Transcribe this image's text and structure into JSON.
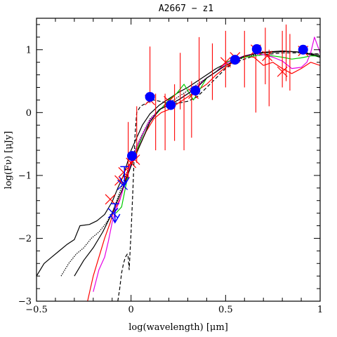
{
  "chart_data": {
    "type": "line",
    "title": "A2667 − z1",
    "xlabel": "log(wavelength) [μm]",
    "ylabel": "log(Fν) [μJy]",
    "xlim": [
      -0.5,
      1.0
    ],
    "ylim": [
      -3.0,
      1.5
    ],
    "x_ticks": [
      -0.5,
      0,
      0.5,
      1
    ],
    "x_tick_labels": [
      "−0.5",
      "0",
      "0.5",
      "1"
    ],
    "y_ticks": [
      -3,
      -2,
      -1,
      0,
      1
    ],
    "y_tick_labels": [
      "−3",
      "−2",
      "−1",
      "0",
      "1"
    ],
    "grid": false,
    "colors": {
      "black": "#000000",
      "red": "#ff0000",
      "green": "#00cc00",
      "magenta": "#e600e6",
      "blue": "#0000ff"
    },
    "series": [
      {
        "color": "black",
        "style": "solid",
        "x": [
          -0.5,
          -0.46,
          -0.42,
          -0.38,
          -0.34,
          -0.3,
          -0.27,
          -0.22,
          -0.18,
          -0.14,
          -0.1,
          -0.07,
          -0.04,
          -0.02,
          0.0,
          0.03,
          0.06,
          0.1,
          0.15,
          0.2,
          0.25,
          0.3,
          0.35,
          0.4,
          0.45,
          0.5,
          0.55,
          0.6,
          0.65,
          0.7,
          0.75,
          0.8,
          0.85,
          0.9,
          0.95,
          1.0
        ],
        "y": [
          -2.6,
          -2.4,
          -2.3,
          -2.2,
          -2.1,
          -2.02,
          -1.8,
          -1.78,
          -1.72,
          -1.62,
          -1.42,
          -1.2,
          -1.0,
          -0.8,
          -0.6,
          -0.4,
          -0.2,
          -0.02,
          0.12,
          0.22,
          0.32,
          0.4,
          0.5,
          0.6,
          0.7,
          0.78,
          0.85,
          0.9,
          0.93,
          0.95,
          0.96,
          0.97,
          0.97,
          0.96,
          0.92,
          0.88
        ]
      },
      {
        "color": "black",
        "style": "dotted",
        "x": [
          -0.37,
          -0.33,
          -0.29,
          -0.25,
          -0.21,
          -0.17,
          -0.13,
          -0.1,
          -0.07,
          -0.04,
          -0.01,
          0.02,
          0.05,
          0.1,
          0.15,
          0.2,
          0.3,
          0.4,
          0.5,
          0.6,
          0.7,
          0.8,
          0.9,
          1.0
        ],
        "y": [
          -2.6,
          -2.4,
          -2.25,
          -2.15,
          -2.0,
          -1.9,
          -1.75,
          -1.6,
          -1.35,
          -1.1,
          -0.85,
          -0.6,
          -0.4,
          -0.1,
          0.05,
          0.15,
          0.35,
          0.55,
          0.75,
          0.88,
          0.95,
          0.98,
          0.96,
          0.92
        ]
      },
      {
        "color": "black",
        "style": "dashed",
        "x": [
          -0.07,
          -0.06,
          -0.05,
          -0.04,
          -0.03,
          -0.02,
          -0.015,
          -0.01,
          -0.005,
          0.0,
          0.01,
          0.02,
          0.03,
          0.05,
          0.08,
          0.1,
          0.12,
          0.15,
          0.2,
          0.25,
          0.3,
          0.35,
          0.4,
          0.45,
          0.5,
          0.55,
          0.6,
          0.65,
          0.7,
          0.8,
          0.9,
          1.0
        ],
        "y": [
          -3.0,
          -2.8,
          -2.55,
          -2.4,
          -2.3,
          -2.25,
          -2.3,
          -2.5,
          -2.2,
          -1.9,
          -1.2,
          -0.4,
          0.0,
          0.1,
          0.15,
          0.18,
          0.2,
          0.18,
          0.15,
          0.15,
          0.18,
          0.25,
          0.4,
          0.55,
          0.7,
          0.8,
          0.85,
          0.9,
          0.92,
          0.95,
          0.95,
          0.93
        ]
      },
      {
        "color": "red",
        "style": "solid",
        "x": [
          -0.23,
          -0.2,
          -0.17,
          -0.14,
          -0.11,
          -0.09,
          -0.07,
          -0.05,
          -0.03,
          -0.01,
          0.01,
          0.03,
          0.05,
          0.08,
          0.12,
          0.16,
          0.2,
          0.25,
          0.3,
          0.35,
          0.4,
          0.45,
          0.5,
          0.55,
          0.6,
          0.65,
          0.7,
          0.75,
          0.8,
          0.85,
          0.9,
          0.95,
          1.0
        ],
        "y": [
          -3.0,
          -2.6,
          -2.3,
          -2.0,
          -1.75,
          -1.55,
          -1.45,
          -1.3,
          -1.05,
          -0.85,
          -0.7,
          -0.6,
          -0.5,
          -0.3,
          -0.1,
          0.0,
          0.05,
          0.15,
          0.25,
          0.35,
          0.45,
          0.6,
          0.72,
          0.82,
          0.9,
          0.88,
          0.75,
          0.8,
          0.7,
          0.62,
          0.7,
          0.8,
          0.75
        ]
      },
      {
        "color": "green",
        "style": "solid",
        "x": [
          -0.08,
          -0.05,
          -0.03,
          -0.01,
          0.01,
          0.03,
          0.05,
          0.07,
          0.09,
          0.11,
          0.14,
          0.17,
          0.2,
          0.24,
          0.28,
          0.3,
          0.33,
          0.36,
          0.4,
          0.45,
          0.5,
          0.55,
          0.6,
          0.65,
          0.7,
          0.75,
          0.8,
          0.85,
          0.9,
          0.95,
          1.0
        ],
        "y": [
          -1.6,
          -1.5,
          -1.2,
          -0.9,
          -0.75,
          -0.6,
          -0.45,
          -0.3,
          -0.2,
          -0.1,
          0.0,
          0.1,
          0.2,
          0.3,
          0.45,
          0.35,
          0.2,
          0.35,
          0.55,
          0.65,
          0.8,
          0.85,
          0.88,
          0.9,
          0.92,
          0.9,
          0.88,
          0.85,
          0.87,
          0.9,
          0.9
        ]
      },
      {
        "color": "magenta",
        "style": "solid",
        "x": [
          -0.2,
          -0.17,
          -0.14,
          -0.12,
          -0.1,
          -0.08,
          -0.06,
          -0.04,
          -0.02,
          0.0,
          0.03,
          0.06,
          0.1,
          0.15,
          0.2,
          0.25,
          0.3,
          0.35,
          0.4,
          0.45,
          0.5,
          0.55,
          0.6,
          0.65,
          0.7,
          0.75,
          0.8,
          0.85,
          0.9,
          0.93,
          0.95,
          0.97,
          1.0
        ],
        "y": [
          -2.85,
          -2.5,
          -2.3,
          -2.05,
          -1.75,
          -1.55,
          -1.4,
          -1.2,
          -1.0,
          -0.8,
          -0.55,
          -0.35,
          -0.12,
          0.05,
          0.12,
          0.2,
          0.3,
          0.42,
          0.55,
          0.65,
          0.78,
          0.85,
          0.9,
          0.94,
          0.92,
          0.88,
          0.82,
          0.7,
          0.72,
          0.8,
          0.95,
          1.2,
          0.95
        ]
      },
      {
        "color": "black",
        "style": "solid",
        "x": [
          -0.3,
          -0.25,
          -0.2,
          -0.15,
          -0.1,
          -0.05,
          0.0,
          0.05,
          0.1,
          0.15,
          0.2,
          0.25,
          0.3,
          0.35,
          0.4,
          0.5,
          0.6,
          0.7,
          0.8,
          0.9,
          1.0
        ],
        "y": [
          -2.6,
          -2.35,
          -2.15,
          -1.9,
          -1.6,
          -1.25,
          -0.85,
          -0.5,
          -0.15,
          0.05,
          0.12,
          0.2,
          0.3,
          0.4,
          0.55,
          0.75,
          0.9,
          0.96,
          0.98,
          0.96,
          0.9
        ]
      }
    ],
    "spectral_lines": {
      "color": "red",
      "x": [
        -0.015,
        0.03,
        0.1,
        0.13,
        0.18,
        0.23,
        0.26,
        0.28,
        0.32,
        0.36,
        0.43,
        0.5,
        0.6,
        0.66,
        0.71,
        0.73,
        0.8,
        0.82,
        0.84
      ],
      "y_top": [
        -0.15,
        0.1,
        1.05,
        0.3,
        0.3,
        0.45,
        0.95,
        0.3,
        0.5,
        1.2,
        1.1,
        1.3,
        1.3,
        0.9,
        1.35,
        1.0,
        1.3,
        1.4,
        1.25
      ]
    },
    "photometry_points": {
      "color": "blue",
      "x": [
        0.1,
        0.21,
        0.34,
        0.55,
        0.665,
        0.91,
        0.005
      ],
      "y": [
        0.25,
        0.12,
        0.35,
        0.84,
        1.01,
        1.0,
        -0.69
      ]
    },
    "upper_limits": {
      "color": "blue",
      "x": [
        -0.085,
        -0.035
      ],
      "y": [
        -1.45,
        -0.86
      ],
      "bar_half_width": 0.022,
      "arrow_len": 0.3
    },
    "model_crosses": {
      "color": "red",
      "x": [
        -0.11,
        -0.06,
        -0.04,
        0.0,
        0.02,
        0.1,
        0.2,
        0.33,
        0.5,
        0.55,
        0.66,
        0.72,
        0.8,
        0.91
      ],
      "y": [
        -1.38,
        -1.08,
        -0.95,
        -0.8,
        -0.75,
        0.2,
        0.18,
        0.3,
        0.8,
        0.88,
        1.0,
        0.9,
        0.65,
        0.98
      ]
    },
    "blue_crosses": {
      "color": "blue",
      "x": [
        -0.045,
        -0.095
      ],
      "y": [
        -1.15,
        -1.6
      ]
    }
  }
}
